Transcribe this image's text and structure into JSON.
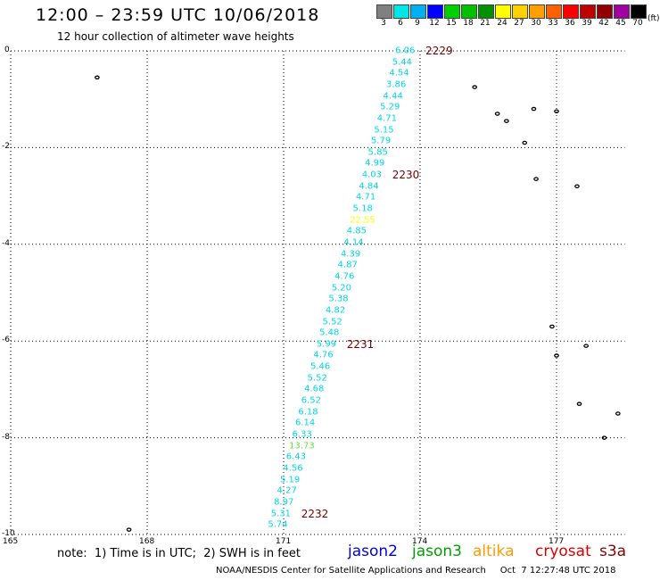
{
  "header": {
    "title": "12:00 – 23:59 UTC 10/06/2018",
    "subtitle": "12 hour collection of altimeter wave heights"
  },
  "scale": {
    "labels": [
      "3",
      "6",
      "9",
      "12",
      "15",
      "18",
      "21",
      "24",
      "27",
      "30",
      "33",
      "36",
      "39",
      "42",
      "45",
      "70"
    ],
    "unit": "(ft)",
    "colors": [
      "#808080",
      "#00e5e5",
      "#00b0f0",
      "#0000ff",
      "#00d000",
      "#00c000",
      "#009000",
      "#ffff00",
      "#ffd000",
      "#ffa000",
      "#ff6000",
      "#ff0000",
      "#c00000",
      "#900000",
      "#a000a0",
      "#000000"
    ]
  },
  "axes": {
    "y_labels": [
      "0",
      "-2",
      "-4",
      "-6",
      "-8",
      "-10"
    ],
    "x_labels": [
      "165",
      "168",
      "171",
      "174",
      "177"
    ],
    "lat_range": [
      0,
      -10
    ],
    "lon_range": [
      165,
      178.5
    ]
  },
  "track": {
    "start": {
      "lon": 173.65,
      "lat": 0.0
    },
    "end": {
      "lon": 170.85,
      "lat": -9.8
    },
    "values": [
      "6.06",
      "5.44",
      "4.54",
      "3.86",
      "4.44",
      "5.29",
      "4.71",
      "5.15",
      "5.79",
      "5.85",
      "4.99",
      "4.03",
      "4.84",
      "4.71",
      "5.18",
      "22.55",
      "4.85",
      "4.14",
      "4.39",
      "4.87",
      "4.76",
      "5.20",
      "5.38",
      "4.82",
      "5.52",
      "5.48",
      "5.99",
      "4.76",
      "5.46",
      "5.52",
      "4.68",
      "6.52",
      "6.18",
      "6.14",
      "6.33",
      "13.73",
      "6.43",
      "4.56",
      "5.19",
      "4.27",
      "8.97",
      "5.31",
      "5.74"
    ],
    "color": "#00d8e8",
    "highlights": {
      "15": "#ffff00",
      "35": "#66dd44"
    }
  },
  "time_markers": [
    {
      "label": "2229",
      "index": 0
    },
    {
      "label": "2230",
      "index": 11
    },
    {
      "label": "2231",
      "index": 26
    },
    {
      "label": "2232",
      "index": 41
    }
  ],
  "islands": [
    {
      "lon": 166.9,
      "lat": -0.55
    },
    {
      "lon": 175.2,
      "lat": -0.75
    },
    {
      "lon": 175.7,
      "lat": -1.3
    },
    {
      "lon": 175.9,
      "lat": -1.45
    },
    {
      "lon": 176.5,
      "lat": -1.2
    },
    {
      "lon": 177.0,
      "lat": -1.25
    },
    {
      "lon": 176.3,
      "lat": -1.9
    },
    {
      "lon": 176.55,
      "lat": -2.65
    },
    {
      "lon": 177.45,
      "lat": -2.8
    },
    {
      "lon": 176.9,
      "lat": -5.7
    },
    {
      "lon": 177.0,
      "lat": -6.3
    },
    {
      "lon": 177.65,
      "lat": -6.1
    },
    {
      "lon": 177.5,
      "lat": -7.3
    },
    {
      "lon": 178.35,
      "lat": -7.5
    },
    {
      "lon": 178.05,
      "lat": -8.0
    },
    {
      "lon": 167.6,
      "lat": -9.9
    }
  ],
  "footer": {
    "note": "note:  1) Time is in UTC;  2) SWH is in feet",
    "satellites": [
      {
        "name": "jason2",
        "color": "#0000e0"
      },
      {
        "name": "jason3",
        "color": "#00a000"
      },
      {
        "name": "altika",
        "color": "#ff9900"
      },
      {
        "name": "cryosat",
        "color": "#dd0000"
      },
      {
        "name": "s3a",
        "color": "#880000"
      }
    ],
    "credit": "NOAA/NESDIS Center for Satellite Applications and Research     Oct  7 12:27:48 UTC 2018"
  }
}
